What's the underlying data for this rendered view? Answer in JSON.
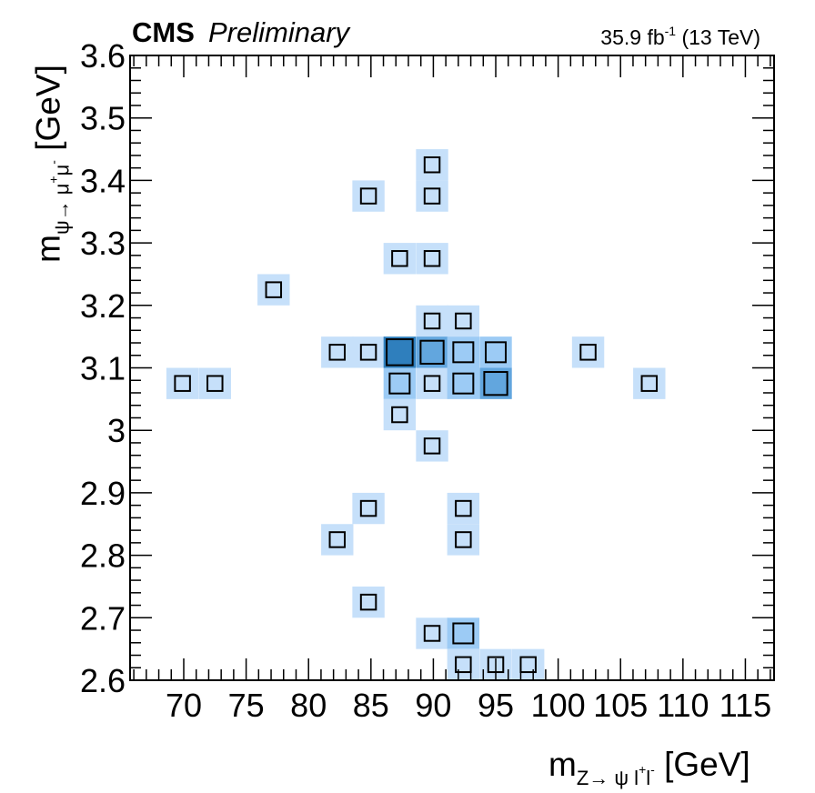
{
  "header": {
    "experiment": "CMS",
    "status": "Preliminary",
    "lumi_value": "35.9 fb",
    "lumi_exp": "-1",
    "energy": "(13 TeV)"
  },
  "axis_labels": {
    "x_main": "m",
    "x_sub_1": "Z→ ψ l",
    "x_sup_1": "+",
    "x_sub_2": "l",
    "x_sup_2": "-",
    "x_unit": "[GeV]",
    "y_main": "m",
    "y_sub_1": "ψ→ μ",
    "y_sup_1": "+",
    "y_sub_2": "μ",
    "y_sup_2": "-",
    "y_unit": "[GeV]"
  },
  "chart_data": {
    "type": "heatmap",
    "xlabel": "m_{Z→ ψ l+l-} [GeV]",
    "ylabel": "m_{ψ→ μ+μ-} [GeV]",
    "xlim": [
      65.7,
      117.3
    ],
    "ylim": [
      2.6,
      3.6
    ],
    "xticks": [
      70,
      75,
      80,
      85,
      90,
      95,
      100,
      105,
      110,
      115
    ],
    "xtick_labels": [
      "70",
      "75",
      "80",
      "85",
      "90",
      "95",
      "100",
      "105",
      "110",
      "115"
    ],
    "yticks": [
      2.6,
      2.7,
      2.8,
      2.9,
      3.0,
      3.1,
      3.2,
      3.3,
      3.4,
      3.5,
      3.6
    ],
    "ytick_labels": [
      "2.6",
      "2.7",
      "2.8",
      "2.9",
      "3",
      "3.1",
      "3.2",
      "3.3",
      "3.4",
      "3.5",
      "3.6"
    ],
    "bin_width_x": 2.58,
    "bin_width_y": 0.05,
    "colors": {
      "level_1": "#c6e0fa",
      "level_2": "#9ccbf5",
      "level_3": "#62a6de",
      "level_4": "#2f7fbd"
    },
    "bins": [
      {
        "x": 69.9,
        "y": 3.075,
        "level": 1
      },
      {
        "x": 72.5,
        "y": 3.075,
        "level": 1
      },
      {
        "x": 77.2,
        "y": 3.225,
        "level": 1
      },
      {
        "x": 82.3,
        "y": 3.125,
        "level": 1
      },
      {
        "x": 84.8,
        "y": 3.125,
        "level": 1
      },
      {
        "x": 84.8,
        "y": 3.375,
        "level": 1
      },
      {
        "x": 84.8,
        "y": 2.875,
        "level": 1
      },
      {
        "x": 82.3,
        "y": 2.825,
        "level": 1
      },
      {
        "x": 84.8,
        "y": 2.725,
        "level": 1
      },
      {
        "x": 87.3,
        "y": 3.275,
        "level": 1
      },
      {
        "x": 87.3,
        "y": 3.125,
        "level": 4
      },
      {
        "x": 87.3,
        "y": 3.075,
        "level": 2
      },
      {
        "x": 87.3,
        "y": 3.025,
        "level": 1
      },
      {
        "x": 89.9,
        "y": 3.425,
        "level": 1
      },
      {
        "x": 89.9,
        "y": 3.375,
        "level": 1
      },
      {
        "x": 89.9,
        "y": 3.275,
        "level": 1
      },
      {
        "x": 89.9,
        "y": 3.175,
        "level": 1
      },
      {
        "x": 89.9,
        "y": 3.125,
        "level": 3
      },
      {
        "x": 89.9,
        "y": 3.075,
        "level": 1
      },
      {
        "x": 89.9,
        "y": 2.975,
        "level": 1
      },
      {
        "x": 89.9,
        "y": 2.675,
        "level": 1
      },
      {
        "x": 92.4,
        "y": 3.175,
        "level": 1
      },
      {
        "x": 92.4,
        "y": 3.125,
        "level": 2
      },
      {
        "x": 92.4,
        "y": 3.075,
        "level": 2
      },
      {
        "x": 92.4,
        "y": 2.875,
        "level": 1
      },
      {
        "x": 92.4,
        "y": 2.825,
        "level": 1
      },
      {
        "x": 92.4,
        "y": 2.675,
        "level": 2
      },
      {
        "x": 92.4,
        "y": 2.625,
        "level": 1
      },
      {
        "x": 95.0,
        "y": 3.125,
        "level": 2
      },
      {
        "x": 95.0,
        "y": 3.075,
        "level": 3
      },
      {
        "x": 95.0,
        "y": 2.625,
        "level": 1
      },
      {
        "x": 97.6,
        "y": 2.625,
        "level": 1
      },
      {
        "x": 102.4,
        "y": 3.125,
        "level": 1
      },
      {
        "x": 107.3,
        "y": 3.075,
        "level": 1
      }
    ]
  }
}
